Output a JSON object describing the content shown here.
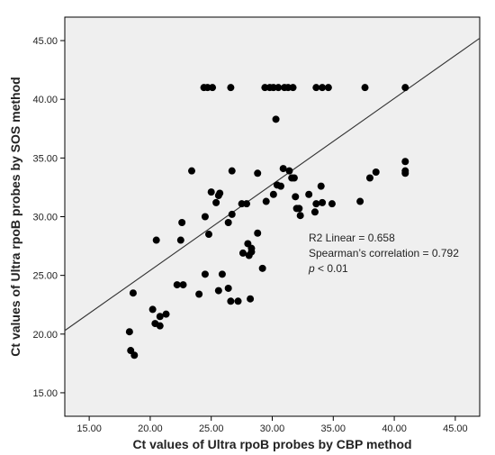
{
  "chart_data": {
    "type": "scatter",
    "title": "",
    "xlabel": "Ct values of Ultra rpoB probes by CBP method",
    "ylabel": "Ct values of Ultra rpoB probes by SOS method",
    "xlim": [
      13,
      47
    ],
    "ylim": [
      13,
      47
    ],
    "x_ticks": [
      "15.00",
      "20.00",
      "25.00",
      "30.00",
      "35.00",
      "40.00",
      "45.00"
    ],
    "y_ticks": [
      "15.00",
      "20.00",
      "25.00",
      "30.00",
      "35.00",
      "40.00",
      "45.00"
    ],
    "x_tick_values": [
      15,
      20,
      25,
      30,
      35,
      40,
      45
    ],
    "y_tick_values": [
      15,
      20,
      25,
      30,
      35,
      40,
      45
    ],
    "grid": false,
    "plot_background": "#efefef",
    "point_color": "#000000",
    "fit_line": {
      "type": "linear",
      "points": [
        [
          13,
          20.3
        ],
        [
          47,
          45.2
        ]
      ]
    },
    "annotations": {
      "r2": "R2 Linear = 0.658",
      "spearman": "Spearman’s correlation = 0.792",
      "p_symbol": "p",
      "p_rest": " < 0.01"
    },
    "points": [
      [
        24.4,
        41.0
      ],
      [
        24.7,
        41.0
      ],
      [
        25.1,
        41.0
      ],
      [
        26.6,
        41.0
      ],
      [
        29.4,
        41.0
      ],
      [
        29.8,
        41.0
      ],
      [
        30.1,
        41.0
      ],
      [
        30.5,
        41.0
      ],
      [
        31.0,
        41.0
      ],
      [
        31.3,
        41.0
      ],
      [
        31.7,
        41.0
      ],
      [
        33.6,
        41.0
      ],
      [
        34.1,
        41.0
      ],
      [
        34.6,
        41.0
      ],
      [
        37.6,
        41.0
      ],
      [
        40.9,
        41.0
      ],
      [
        30.3,
        38.3
      ],
      [
        23.4,
        33.9
      ],
      [
        26.7,
        33.9
      ],
      [
        28.8,
        33.7
      ],
      [
        30.9,
        34.1
      ],
      [
        31.4,
        33.9
      ],
      [
        31.6,
        33.3
      ],
      [
        31.8,
        33.3
      ],
      [
        30.4,
        32.7
      ],
      [
        29.5,
        31.3
      ],
      [
        30.1,
        31.9
      ],
      [
        30.7,
        32.6
      ],
      [
        31.9,
        31.7
      ],
      [
        32.0,
        30.7
      ],
      [
        32.2,
        30.7
      ],
      [
        32.3,
        30.1
      ],
      [
        33.0,
        31.9
      ],
      [
        33.5,
        30.4
      ],
      [
        33.6,
        31.1
      ],
      [
        34.0,
        32.6
      ],
      [
        34.1,
        31.2
      ],
      [
        34.9,
        31.1
      ],
      [
        37.2,
        31.3
      ],
      [
        38.0,
        33.3
      ],
      [
        38.5,
        33.8
      ],
      [
        40.9,
        34.7
      ],
      [
        40.9,
        33.9
      ],
      [
        40.9,
        33.7
      ],
      [
        20.5,
        28.0
      ],
      [
        22.5,
        28.0
      ],
      [
        22.6,
        29.5
      ],
      [
        24.5,
        30.0
      ],
      [
        24.8,
        28.5
      ],
      [
        25.0,
        32.1
      ],
      [
        25.4,
        31.2
      ],
      [
        25.6,
        31.8
      ],
      [
        25.7,
        32.0
      ],
      [
        26.4,
        29.5
      ],
      [
        26.7,
        30.2
      ],
      [
        27.5,
        31.1
      ],
      [
        27.9,
        31.1
      ],
      [
        28.8,
        28.6
      ],
      [
        18.3,
        20.2
      ],
      [
        18.4,
        18.6
      ],
      [
        18.7,
        18.2
      ],
      [
        18.6,
        23.5
      ],
      [
        20.2,
        22.1
      ],
      [
        20.4,
        20.9
      ],
      [
        20.8,
        21.5
      ],
      [
        20.8,
        20.7
      ],
      [
        21.3,
        21.7
      ],
      [
        22.2,
        24.2
      ],
      [
        22.7,
        24.2
      ],
      [
        24.0,
        23.4
      ],
      [
        24.5,
        25.1
      ],
      [
        25.6,
        23.7
      ],
      [
        25.9,
        25.1
      ],
      [
        26.4,
        23.9
      ],
      [
        26.6,
        22.8
      ],
      [
        27.2,
        22.8
      ],
      [
        27.6,
        26.9
      ],
      [
        28.0,
        27.7
      ],
      [
        28.1,
        26.7
      ],
      [
        28.2,
        23.0
      ],
      [
        28.3,
        27.3
      ],
      [
        28.3,
        27.0
      ],
      [
        29.2,
        25.6
      ]
    ]
  }
}
